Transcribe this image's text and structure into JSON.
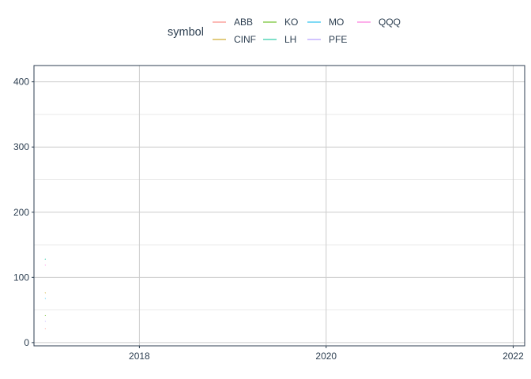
{
  "chart_data": {
    "type": "line",
    "title": "",
    "xlabel": "",
    "ylabel": "",
    "xlim": [
      "2016-11-15",
      "2022-02-15"
    ],
    "ylim": [
      -5,
      425
    ],
    "x_ticks": [
      "2018",
      "2020",
      "2022"
    ],
    "y_ticks": [
      "0",
      "100",
      "200",
      "300",
      "400"
    ],
    "grid": true,
    "legend_position": "top",
    "legend": {
      "title": "symbol",
      "entries": [
        {
          "name": "ABB",
          "color": "#F8766D"
        },
        {
          "name": "CINF",
          "color": "#C49A00"
        },
        {
          "name": "KO",
          "color": "#53B400"
        },
        {
          "name": "LH",
          "color": "#00C094"
        },
        {
          "name": "MO",
          "color": "#00B6EB"
        },
        {
          "name": "PFE",
          "color": "#A58AFF"
        },
        {
          "name": "QQQ",
          "color": "#FB61D7"
        }
      ]
    },
    "series": [
      {
        "name": "ABB",
        "color": "#F8766D",
        "x": [
          "2016-12-28",
          "2016-12-30"
        ],
        "y": [
          21.0,
          21.3
        ]
      },
      {
        "name": "CINF",
        "color": "#C49A00",
        "x": [
          "2016-12-28",
          "2016-12-30"
        ],
        "y": [
          76.0,
          76.5
        ]
      },
      {
        "name": "KO",
        "color": "#53B400",
        "x": [
          "2016-12-28",
          "2016-12-30"
        ],
        "y": [
          41.5,
          41.8
        ]
      },
      {
        "name": "LH",
        "color": "#00C094",
        "x": [
          "2016-12-28",
          "2016-12-30"
        ],
        "y": [
          127.5,
          128.5
        ]
      },
      {
        "name": "MO",
        "color": "#00B6EB",
        "x": [
          "2016-12-28",
          "2016-12-30"
        ],
        "y": [
          67.5,
          67.8
        ]
      },
      {
        "name": "PFE",
        "color": "#A58AFF",
        "x": [
          "2016-12-28",
          "2016-12-30"
        ],
        "y": [
          32.5,
          32.6
        ]
      },
      {
        "name": "QQQ",
        "color": "#FB61D7",
        "x": [
          "2016-12-28",
          "2016-12-30"
        ],
        "y": [
          118.5,
          119.0
        ]
      }
    ]
  }
}
